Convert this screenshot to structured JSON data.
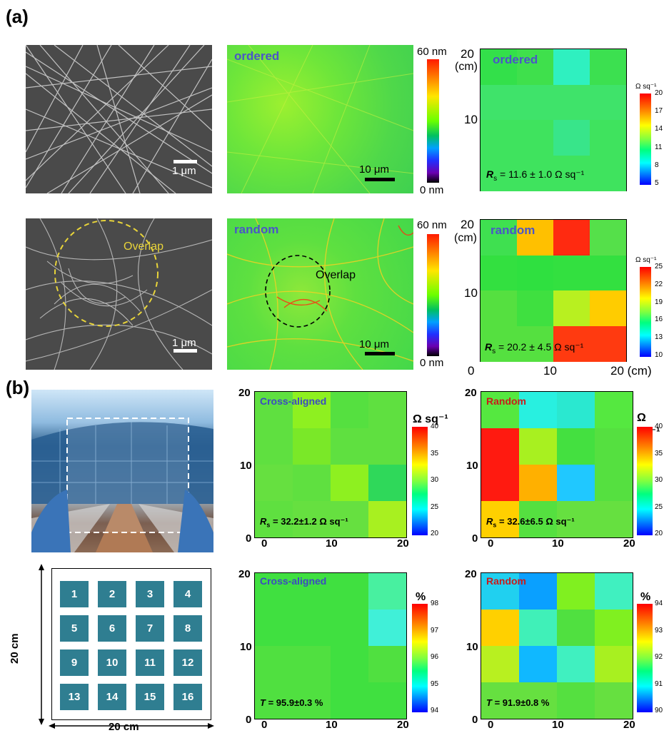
{
  "panel_a": {
    "label": "(a)",
    "row1": {
      "sem_scale": "1 μm",
      "afm_tag": "ordered",
      "afm_scale": "10 μm",
      "afm_cb_top": "60 nm",
      "afm_cb_bottom": "0 nm",
      "map_tag": "ordered",
      "map_y_unit": "(cm)",
      "map_y_20": "20",
      "map_y_10": "10",
      "map_cb_unit": "Ω sq⁻¹",
      "map_cb_ticks": [
        "20",
        "17",
        "14",
        "11",
        "8",
        "5"
      ],
      "rs_label": "R",
      "rs_sub": "s",
      "rs_value": " = 11.6 ± 1.0 Ω sq⁻¹"
    },
    "row2": {
      "sem_overlap": "Overlap",
      "sem_scale": "1 μm",
      "afm_tag": "random",
      "afm_overlap": "Overlap",
      "afm_scale": "10 μm",
      "afm_cb_top": "60 nm",
      "afm_cb_bottom": "0 nm",
      "map_tag": "random",
      "map_y_unit": "(cm)",
      "map_y_20": "20",
      "map_y_10": "10",
      "map_x_0": "0",
      "map_x_10": "10",
      "map_x_20": "20 (cm)",
      "map_cb_unit": "Ω sq⁻¹",
      "map_cb_ticks": [
        "25",
        "22",
        "19",
        "16",
        "13",
        "10"
      ],
      "rs_label": "R",
      "rs_sub": "s",
      "rs_value": " = 20.2 ± 4.5 Ω sq⁻¹"
    }
  },
  "panel_b": {
    "label": "(b)",
    "grid_numbers": [
      "1",
      "2",
      "3",
      "4",
      "5",
      "6",
      "7",
      "8",
      "9",
      "10",
      "11",
      "12",
      "13",
      "14",
      "15",
      "16"
    ],
    "grid_dim_x": "20 cm",
    "grid_dim_y": "20 cm",
    "cross_rs": {
      "tag": "Cross-aligned",
      "cb_unit": "Ω sq⁻¹",
      "cb_ticks": [
        "40",
        "35",
        "30",
        "25",
        "20"
      ],
      "y_ticks": [
        "20",
        "10",
        "0"
      ],
      "x_ticks": [
        "0",
        "10",
        "20"
      ],
      "value_label": "R",
      "value_sub": "s",
      "value": " = 32.2±1.2 Ω sq⁻¹"
    },
    "random_rs": {
      "tag": "Random",
      "cb_unit": "Ω sq⁻¹",
      "cb_ticks": [
        "40",
        "35",
        "30",
        "25",
        "20"
      ],
      "y_ticks": [
        "20",
        "10",
        "0"
      ],
      "x_ticks": [
        "0",
        "10",
        "20"
      ],
      "value_label": "R",
      "value_sub": "s",
      "value": " = 32.6±6.5 Ω sq⁻¹"
    },
    "cross_t": {
      "tag": "Cross-aligned",
      "cb_unit": "%",
      "cb_ticks": [
        "98",
        "97",
        "96",
        "95",
        "94"
      ],
      "y_ticks": [
        "20",
        "10",
        "0"
      ],
      "x_ticks": [
        "0",
        "10",
        "20"
      ],
      "value_label": "T",
      "value": " = 95.9±0.3 %"
    },
    "random_t": {
      "tag": "Random",
      "cb_unit": "%",
      "cb_ticks": [
        "94",
        "93",
        "92",
        "91",
        "90"
      ],
      "y_ticks": [
        "20",
        "10",
        "0"
      ],
      "x_ticks": [
        "0",
        "10",
        "20"
      ],
      "value_label": "T",
      "value": " = 91.9±0.8 %"
    }
  },
  "heatmaps": {
    "a1": [
      "#33e04a",
      "#3fe04c",
      "#2ff0c0",
      "#3ce050",
      "#3fe36a",
      "#3fe36a",
      "#3fe36a",
      "#3fe36a",
      "#3fe35e",
      "#3fe35e",
      "#38e58a",
      "#3fe35e",
      "#3fe35e",
      "#3fe35e",
      "#3fe35e",
      "#3fe35e"
    ],
    "a2": [
      "#3fe050",
      "#ffc000",
      "#ff2a10",
      "#55e04a",
      "#33e040",
      "#2fe040",
      "#33e040",
      "#33e040",
      "#55e040",
      "#3fe040",
      "#b8f020",
      "#ffcc00",
      "#55e040",
      "#55e040",
      "#ff3a10",
      "#ff3a10"
    ],
    "b_cross_rs": [
      "#5fe040",
      "#8ef020",
      "#55e040",
      "#5fe040",
      "#5fe040",
      "#7ae828",
      "#5fe040",
      "#5fe040",
      "#66e040",
      "#5fe040",
      "#8ef020",
      "#2fd85a",
      "#5fe040",
      "#66e040",
      "#66e040",
      "#a8f020"
    ],
    "b_random_rs": [
      "#55e840",
      "#28f0e0",
      "#2ae8d0",
      "#55e840",
      "#ff1a10",
      "#a8f020",
      "#44e040",
      "#55e040",
      "#ff1a10",
      "#ffb000",
      "#20c8ff",
      "#55e040",
      "#ffd000",
      "#55e040",
      "#66e040",
      "#66e040"
    ],
    "b_cross_t": [
      "#40e040",
      "#40e040",
      "#40e040",
      "#48f0a0",
      "#40e040",
      "#40e040",
      "#40e040",
      "#40f0d8",
      "#50e040",
      "#50e040",
      "#40e040",
      "#50e040",
      "#50e040",
      "#50e040",
      "#40e040",
      "#40e040"
    ],
    "b_random_t": [
      "#20d0f0",
      "#0aa0ff",
      "#80f020",
      "#40f0c0",
      "#ffd000",
      "#40f0b8",
      "#50e040",
      "#80f020",
      "#b8f020",
      "#10b8ff",
      "#40f0c0",
      "#a8f020",
      "#66e040",
      "#66e040",
      "#55e040",
      "#66e040"
    ]
  }
}
